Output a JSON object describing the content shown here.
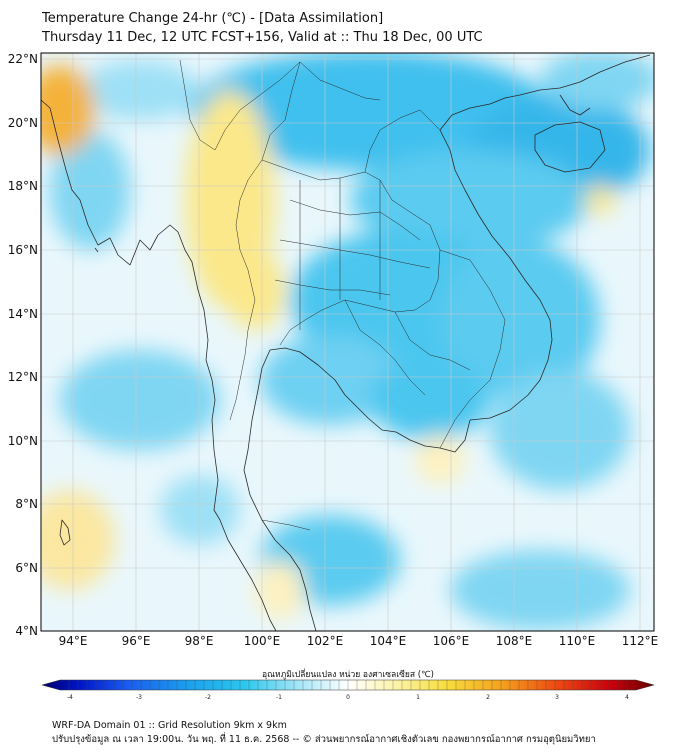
{
  "title": {
    "line1": "Temperature Change 24-hr (℃) - [Data Assimilation]",
    "line2": "Thursday 11 Dec, 12 UTC FCST+156, Valid at :: Thu 18 Dec, 00 UTC"
  },
  "axes": {
    "lat_labels": [
      "22°N",
      "20°N",
      "18°N",
      "16°N",
      "14°N",
      "12°N",
      "10°N",
      "8°N",
      "6°N",
      "4°N"
    ],
    "lon_labels": [
      "94°E",
      "96°E",
      "98°E",
      "100°E",
      "102°E",
      "104°E",
      "106°E",
      "108°E",
      "110°E",
      "112°E"
    ]
  },
  "colorbar": {
    "label": "อุณหภูมิเปลี่ยนแปลง หน่วย องศาเซลเซียส (℃)",
    "ticks": [
      "-4",
      "-3",
      "-2",
      "-1",
      "0",
      "1",
      "2",
      "3",
      "4"
    ],
    "min": -4,
    "max": 4
  },
  "footer": {
    "line1": "WRF-DA Domain 01 :: Grid Resolution 9km x 9km",
    "line2": "ปรับปรุงข้อมูล ณ เวลา 19:00น. วัน พฤ. ที่ 11 ธ.ค. 2568 -- © ส่วนพยากรณ์อากาศเชิงตัวเลข กองพยากรณ์อากาศ กรมอุตุนิยมวิทยา"
  },
  "colors": {
    "cold": "#29b5ea",
    "light_cold": "#bde9f8",
    "neutral": "#ffffff",
    "warm": "#fbe88a",
    "hot": "#f4a826"
  }
}
